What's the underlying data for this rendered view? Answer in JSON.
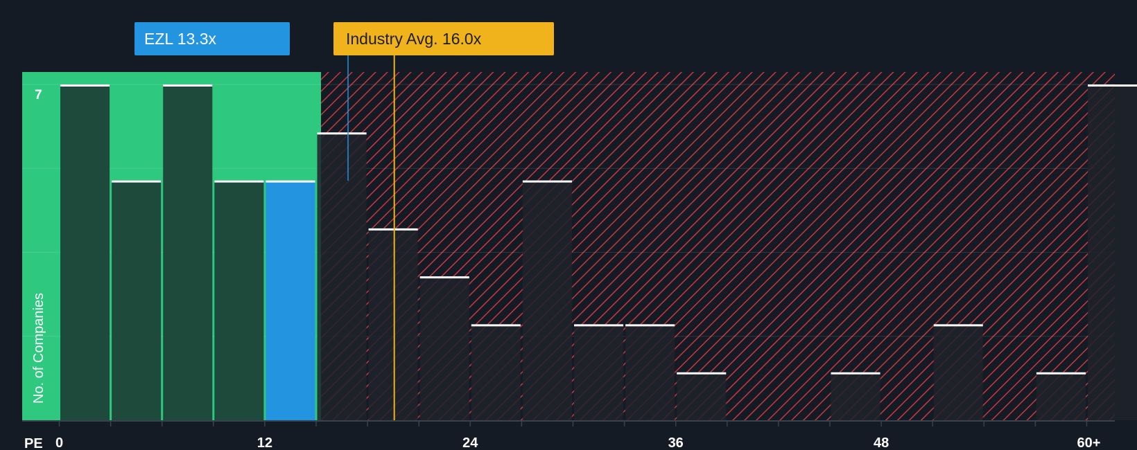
{
  "chart_data": {
    "type": "bar",
    "xlabel": "PE",
    "ylabel": "No. of Companies",
    "x_tick_labels": [
      "0",
      "12",
      "24",
      "36",
      "48",
      "60+"
    ],
    "y_tick_label": "7",
    "ylim": [
      0,
      7
    ],
    "bin_width": 3,
    "bins": [
      {
        "start": 0,
        "value": 7
      },
      {
        "start": 3,
        "value": 5
      },
      {
        "start": 6,
        "value": 7
      },
      {
        "start": 9,
        "value": 5
      },
      {
        "start": 12,
        "value": 5
      },
      {
        "start": 15,
        "value": 6
      },
      {
        "start": 18,
        "value": 4
      },
      {
        "start": 21,
        "value": 3
      },
      {
        "start": 24,
        "value": 2
      },
      {
        "start": 27,
        "value": 5
      },
      {
        "start": 30,
        "value": 2
      },
      {
        "start": 33,
        "value": 2
      },
      {
        "start": 36,
        "value": 1
      },
      {
        "start": 39,
        "value": 0
      },
      {
        "start": 42,
        "value": 0
      },
      {
        "start": 45,
        "value": 1
      },
      {
        "start": 48,
        "value": 0
      },
      {
        "start": 51,
        "value": 2
      },
      {
        "start": 54,
        "value": 0
      },
      {
        "start": 57,
        "value": 1
      },
      {
        "start": 60,
        "value": 7
      }
    ],
    "company": {
      "label": "EZL 13.3x",
      "pe": 13.3
    },
    "industry_avg": {
      "label": "Industry Avg. 16.0x",
      "pe": 16.0
    },
    "colors": {
      "background": "#151b24",
      "undervalued_zone": "#2ec87f",
      "undervalued_bar": "#1e4a3c",
      "company_bar": "#2394e0",
      "overvalued_hatch": "#c8393f",
      "overvalued_bar": "#1f222c",
      "cap_line": "#ffffff",
      "industry_line": "#f0b31c"
    }
  }
}
